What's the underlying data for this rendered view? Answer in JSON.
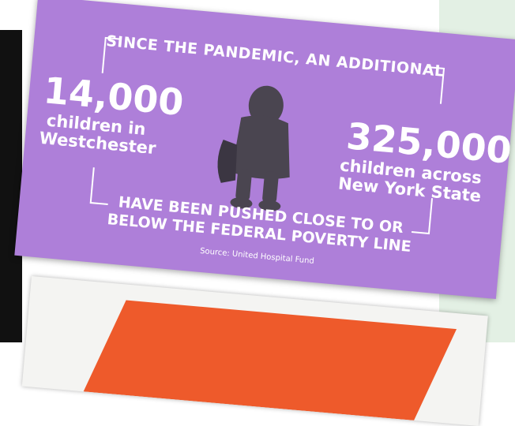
{
  "infographic": {
    "headline": "SINCE THE PANDEMIC, AN ADDITIONAL",
    "left_stat": {
      "number": "14,000",
      "lines": [
        "children in",
        "Westchester"
      ]
    },
    "right_stat": {
      "number": "325,000",
      "lines": [
        "children across",
        "New York State"
      ]
    },
    "conclusion": [
      "HAVE BEEN PUSHED CLOSE TO OR",
      "BELOW THE FEDERAL POVERTY LINE"
    ],
    "source": "Source: United Hospital Fund"
  }
}
